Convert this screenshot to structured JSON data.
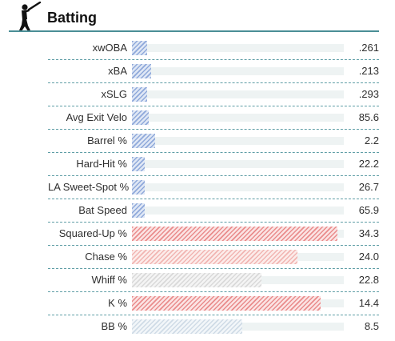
{
  "header": {
    "title": "Batting",
    "icon": "batter-silhouette-icon",
    "rule_color": "#4a8e96"
  },
  "metrics": [
    {
      "label": "xwOBA",
      "value": ".261",
      "fill_percent": 7,
      "color": "blue"
    },
    {
      "label": "xBA",
      "value": ".213",
      "fill_percent": 9,
      "color": "blue"
    },
    {
      "label": "xSLG",
      "value": ".293",
      "fill_percent": 7,
      "color": "blue"
    },
    {
      "label": "Avg Exit Velo",
      "value": "85.6",
      "fill_percent": 8,
      "color": "blue"
    },
    {
      "label": "Barrel %",
      "value": "2.2",
      "fill_percent": 11,
      "color": "blue"
    },
    {
      "label": "Hard-Hit %",
      "value": "22.2",
      "fill_percent": 6,
      "color": "blue"
    },
    {
      "label": "LA Sweet-Spot %",
      "value": "26.7",
      "fill_percent": 6,
      "color": "blue"
    },
    {
      "label": "Bat Speed",
      "value": "65.9",
      "fill_percent": 6,
      "color": "blue"
    },
    {
      "label": "Squared-Up %",
      "value": "34.3",
      "fill_percent": 97,
      "color": "red"
    },
    {
      "label": "Chase %",
      "value": "24.0",
      "fill_percent": 78,
      "color": "pink"
    },
    {
      "label": "Whiff %",
      "value": "22.8",
      "fill_percent": 61,
      "color": "grey"
    },
    {
      "label": "K %",
      "value": "14.4",
      "fill_percent": 89,
      "color": "red"
    },
    {
      "label": "BB %",
      "value": "8.5",
      "fill_percent": 52,
      "color": "lightblue"
    }
  ]
}
